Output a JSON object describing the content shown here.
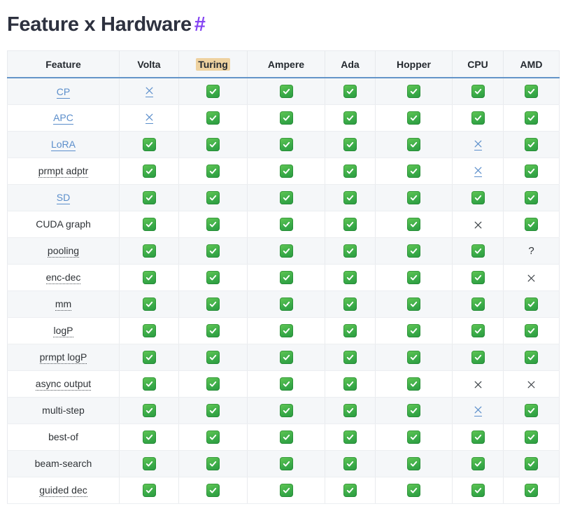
{
  "page": {
    "title": "Feature x Hardware",
    "anchor": "#"
  },
  "table": {
    "columns": [
      "Feature",
      "Volta",
      "Turing",
      "Ampere",
      "Ada",
      "Hopper",
      "CPU",
      "AMD"
    ],
    "highlighted_column": "Turing",
    "hardware_columns": [
      "Volta",
      "Turing",
      "Ampere",
      "Ada",
      "Hopper",
      "CPU",
      "AMD"
    ],
    "symbols_legend": {
      "check": "supported (green check)",
      "x": "not supported (cross)",
      "x-link": "not supported (cross, linked)",
      "question": "unknown (?)"
    },
    "rows": [
      {
        "feature": "CP",
        "feature_style": "link",
        "cells": [
          "x-link",
          "check",
          "check",
          "check",
          "check",
          "check",
          "check"
        ]
      },
      {
        "feature": "APC",
        "feature_style": "link",
        "cells": [
          "x-link",
          "check",
          "check",
          "check",
          "check",
          "check",
          "check"
        ]
      },
      {
        "feature": "LoRA",
        "feature_style": "link",
        "cells": [
          "check",
          "check",
          "check",
          "check",
          "check",
          "x-link",
          "check"
        ]
      },
      {
        "feature": "prmpt adptr",
        "feature_style": "abbr",
        "cells": [
          "check",
          "check",
          "check",
          "check",
          "check",
          "x-link",
          "check"
        ]
      },
      {
        "feature": "SD",
        "feature_style": "link",
        "cells": [
          "check",
          "check",
          "check",
          "check",
          "check",
          "check",
          "check"
        ]
      },
      {
        "feature": "CUDA graph",
        "feature_style": "plain",
        "cells": [
          "check",
          "check",
          "check",
          "check",
          "check",
          "x",
          "check"
        ]
      },
      {
        "feature": "pooling",
        "feature_style": "abbr",
        "cells": [
          "check",
          "check",
          "check",
          "check",
          "check",
          "check",
          "question"
        ]
      },
      {
        "feature": "enc-dec",
        "feature_style": "abbr",
        "cells": [
          "check",
          "check",
          "check",
          "check",
          "check",
          "check",
          "x"
        ]
      },
      {
        "feature": "mm",
        "feature_style": "abbr",
        "cells": [
          "check",
          "check",
          "check",
          "check",
          "check",
          "check",
          "check"
        ]
      },
      {
        "feature": "logP",
        "feature_style": "abbr",
        "cells": [
          "check",
          "check",
          "check",
          "check",
          "check",
          "check",
          "check"
        ]
      },
      {
        "feature": "prmpt logP",
        "feature_style": "abbr",
        "cells": [
          "check",
          "check",
          "check",
          "check",
          "check",
          "check",
          "check"
        ]
      },
      {
        "feature": "async output",
        "feature_style": "abbr",
        "cells": [
          "check",
          "check",
          "check",
          "check",
          "check",
          "x",
          "x"
        ]
      },
      {
        "feature": "multi-step",
        "feature_style": "plain",
        "cells": [
          "check",
          "check",
          "check",
          "check",
          "check",
          "x-link",
          "check"
        ]
      },
      {
        "feature": "best-of",
        "feature_style": "plain",
        "cells": [
          "check",
          "check",
          "check",
          "check",
          "check",
          "check",
          "check"
        ]
      },
      {
        "feature": "beam-search",
        "feature_style": "plain",
        "cells": [
          "check",
          "check",
          "check",
          "check",
          "check",
          "check",
          "check"
        ]
      },
      {
        "feature": "guided dec",
        "feature_style": "abbr",
        "cells": [
          "check",
          "check",
          "check",
          "check",
          "check",
          "check",
          "check"
        ]
      }
    ]
  },
  "colors": {
    "accent_link": "#5b8ecb",
    "header_underline": "#6495c8",
    "row_stripe": "#f5f7f9",
    "highlight_mark": "#eed2a0",
    "anchor_purple": "#8444f2",
    "check_green": "#3aab48"
  }
}
